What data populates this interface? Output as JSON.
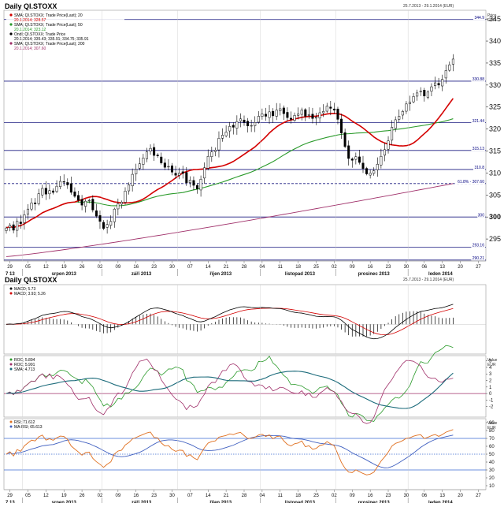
{
  "chart_data": {
    "type": "stock-chart",
    "title": "Daily QI.STOXX",
    "date_range": "25.7.2013 - 29.1.2014 (EUR)",
    "currency_label": [
      "Price",
      "EUR"
    ],
    "price_panel": {
      "ylim": [
        290,
        347
      ],
      "yticks": [
        295,
        300,
        305,
        310,
        315,
        320,
        325,
        330,
        335,
        340,
        345
      ],
      "levels": [
        {
          "value": 344.9,
          "label": "344.9",
          "style": "solid"
        },
        {
          "value": 330.88,
          "label": "330.88",
          "style": "solid"
        },
        {
          "value": 321.44,
          "label": "321.44",
          "style": "solid"
        },
        {
          "value": 315.13,
          "label": "315.13",
          "style": "solid"
        },
        {
          "value": 310.8,
          "label": "310.8",
          "style": "solid"
        },
        {
          "value": 307.6,
          "label": "61.8% - 307.60",
          "style": "dashed"
        },
        {
          "value": 300,
          "label": "300",
          "style": "solid"
        },
        {
          "value": 293.16,
          "label": "293.16",
          "style": "solid"
        },
        {
          "value": 290.21,
          "label": "290.21",
          "style": "solid"
        }
      ],
      "legend": [
        {
          "text": "SMA; QI.STOXX; Trade Price(Last); 20",
          "color": "#d40000"
        },
        {
          "text": "20.1.2014; 328.57",
          "color": "#d40000"
        },
        {
          "text": "SMA; QI.STOXX; Trade Price(Last); 50",
          "color": "#2a9a2a"
        },
        {
          "text": "20.1.2014; 323.12",
          "color": "#2a9a2a"
        },
        {
          "text": "Ondl; QI.STOXX; Trade Price",
          "color": "#000000"
        },
        {
          "text": "20.1.2014; 335.43; 335.91; 334.75; 335.91",
          "color": "#000000"
        },
        {
          "text": "SMA; QI.STOXX; Trade Price(Last); 200",
          "color": "#a0306a"
        },
        {
          "text": "20.1.2014; 307.60",
          "color": "#a0306a"
        }
      ],
      "closes": [
        297.5,
        298.2,
        297.0,
        299.0,
        298.5,
        300.5,
        301.8,
        303.2,
        303.0,
        305.3,
        306.5,
        305.2,
        306.0,
        305.6,
        307.0,
        308.1,
        308.0,
        307.3,
        305.6,
        304.7,
        303.8,
        302.7,
        303.6,
        303.8,
        301.6,
        300.2,
        299.0,
        297.4,
        298.3,
        299.0,
        301.8,
        303.0,
        303.4,
        305.9,
        307.3,
        309.7,
        310.8,
        312.1,
        313.4,
        314.8,
        315.6,
        314.0,
        313.9,
        312.3,
        311.3,
        311.5,
        310.2,
        309.5,
        310.0,
        309.9,
        307.8,
        308.4,
        307.2,
        306.4,
        308.6,
        311.2,
        313.8,
        314.8,
        315.2,
        317.9,
        318.6,
        319.3,
        320.6,
        320.4,
        321.7,
        322.3,
        321.5,
        320.7,
        320.8,
        321.5,
        322.9,
        323.4,
        322.9,
        323.9,
        323.0,
        324.3,
        324.6,
        323.5,
        322.6,
        322.2,
        323.1,
        323.4,
        324.3,
        322.9,
        323.3,
        322.4,
        322.7,
        323.7,
        324.0,
        325.2,
        324.7,
        324.3,
        322.2,
        319.1,
        316.0,
        313.3,
        312.9,
        313.7,
        312.4,
        311.0,
        309.8,
        310.0,
        310.5,
        312.0,
        313.8,
        315.3,
        317.3,
        320.4,
        322.1,
        322.9,
        324.0,
        325.7,
        326.1,
        327.4,
        328.2,
        328.6,
        327.5,
        328.4,
        329.6,
        330.5,
        330.0,
        331.3,
        333.3,
        334.6,
        335.9
      ],
      "months": [
        {
          "label": "srpen 2013",
          "start": 5,
          "end": 27
        },
        {
          "label": "září 2013",
          "start": 27,
          "end": 48
        },
        {
          "label": "říjen 2013",
          "start": 48,
          "end": 71
        },
        {
          "label": "listopad 2013",
          "start": 71,
          "end": 92
        },
        {
          "label": "prosinec 2013",
          "start": 92,
          "end": 112
        },
        {
          "label": "leden 2014",
          "start": 112,
          "end": 129
        }
      ],
      "day_labels": [
        {
          "label": "29",
          "i": 1
        },
        {
          "label": "05",
          "i": 6
        },
        {
          "label": "12",
          "i": 11
        },
        {
          "label": "19",
          "i": 16
        },
        {
          "label": "26",
          "i": 21
        },
        {
          "label": "02",
          "i": 26
        },
        {
          "label": "09",
          "i": 31
        },
        {
          "label": "16",
          "i": 36
        },
        {
          "label": "23",
          "i": 41
        },
        {
          "label": "30",
          "i": 46
        },
        {
          "label": "07",
          "i": 51
        },
        {
          "label": "14",
          "i": 56
        },
        {
          "label": "21",
          "i": 61
        },
        {
          "label": "28",
          "i": 66
        },
        {
          "label": "04",
          "i": 71
        },
        {
          "label": "11",
          "i": 76
        },
        {
          "label": "18",
          "i": 81
        },
        {
          "label": "25",
          "i": 86
        },
        {
          "label": "02",
          "i": 91
        },
        {
          "label": "09",
          "i": 96
        },
        {
          "label": "16",
          "i": 101
        },
        {
          "label": "23",
          "i": 106
        },
        {
          "label": "30",
          "i": 111
        },
        {
          "label": "06",
          "i": 116
        },
        {
          "label": "13",
          "i": 121
        },
        {
          "label": "20",
          "i": 126
        },
        {
          "label": "27",
          "i": 131
        }
      ],
      "first_axis_label": "7 13"
    },
    "lower_header": {
      "title": "Daily QI.STOXX",
      "date_range": "25.7.2013 - 29.1.2014 (EUR)"
    },
    "macd_panel": {
      "legend": [
        {
          "text": "MACD; 5.73",
          "color": "#000000"
        },
        {
          "text": "MACD; 3.93; 5.26",
          "color": "#d40000"
        }
      ],
      "ylim": [
        -6,
        8
      ]
    },
    "roc_panel": {
      "legend": [
        {
          "text": "ROC; 5.894",
          "color": "#2a9a2a"
        },
        {
          "text": "ROC; 5.991",
          "color": "#a0306a"
        },
        {
          "text": "SMA; 4.713",
          "color": "#1a6a7a"
        }
      ],
      "currency_label": [
        "Value",
        "EUR"
      ],
      "ylim": [
        -3.6,
        5.8
      ],
      "yticks": [
        -2,
        -1,
        0,
        1,
        2,
        3,
        4,
        5
      ],
      "ytick_labels": [
        "-2",
        "-1",
        "0",
        "1",
        "2",
        "3",
        "4",
        "5"
      ]
    },
    "rsi_panel": {
      "legend": [
        {
          "text": "RSI; 71.612",
          "color": "#e07020"
        },
        {
          "text": "MA-RSI; 65.613",
          "color": "#4060c0"
        }
      ],
      "currency_label": [
        "Value",
        "EUR"
      ],
      "ylim": [
        5,
        95
      ],
      "yticks": [
        10,
        20,
        30,
        40,
        50,
        60,
        70,
        80,
        90
      ],
      "ytick_labels": [
        "10",
        "20",
        "30",
        "40",
        "50",
        "60",
        "70",
        "80",
        "90"
      ],
      "levels": [
        70,
        50,
        30
      ]
    }
  }
}
